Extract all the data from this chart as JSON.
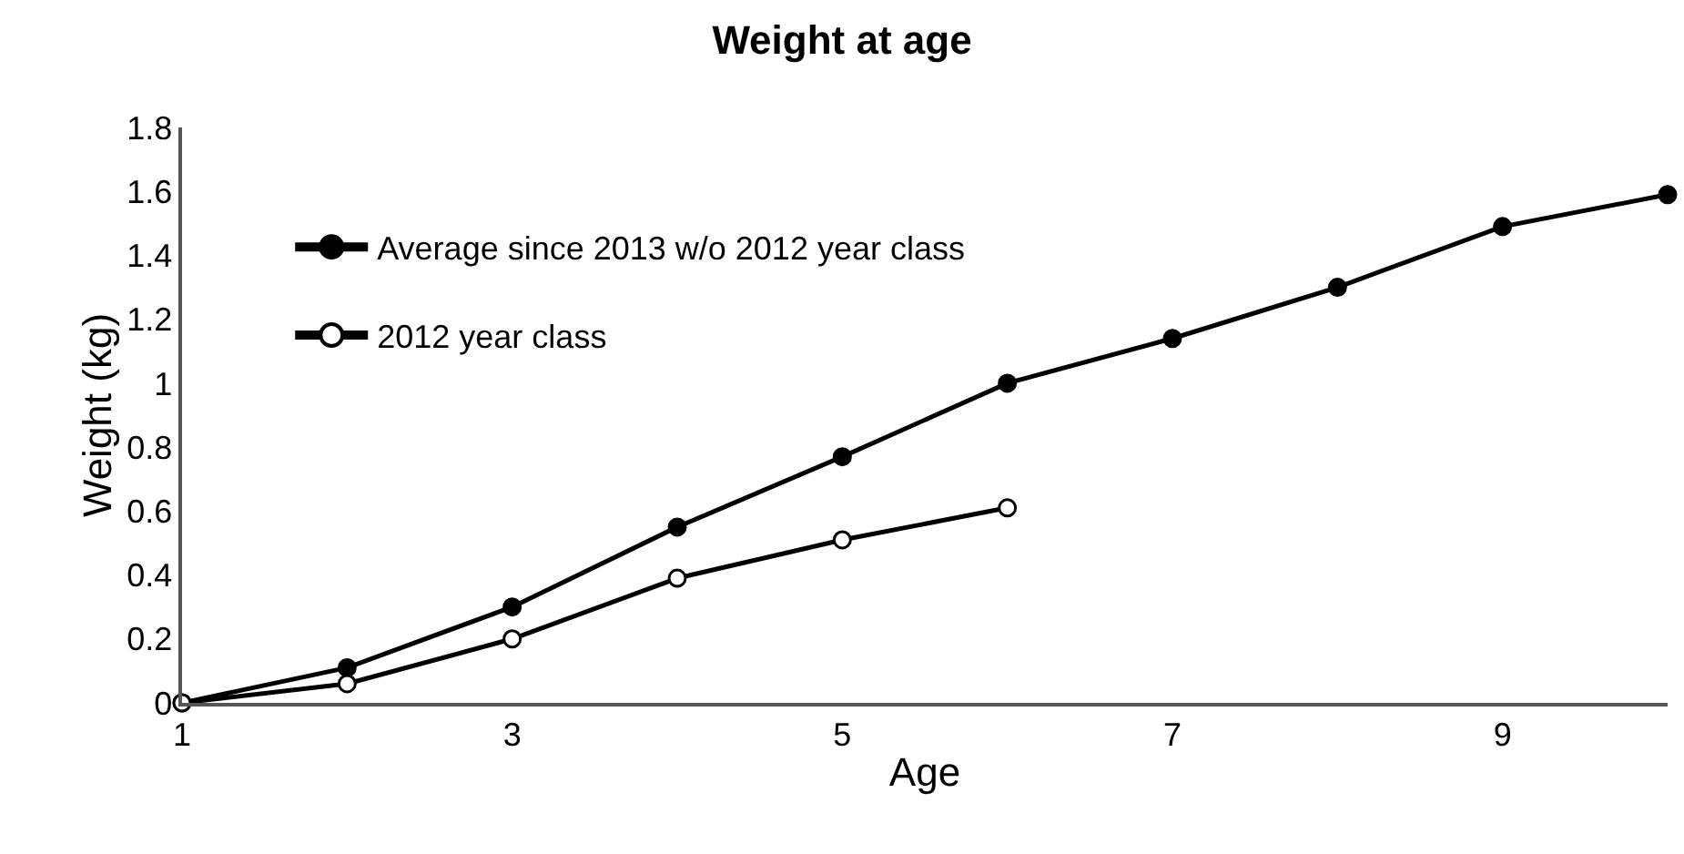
{
  "chart_data": {
    "type": "line",
    "title": "Weight at age",
    "xlabel": "Age",
    "ylabel": "Weight (kg)",
    "xlim": [
      1,
      10
    ],
    "xticks": [
      1,
      3,
      5,
      7,
      9
    ],
    "ylim": [
      0,
      1.8
    ],
    "yticks": [
      0,
      0.2,
      0.4,
      0.6,
      0.8,
      1,
      1.2,
      1.4,
      1.6,
      1.8
    ],
    "legend": "top left",
    "series": [
      {
        "name": "Average since 2013 w/o 2012 year class",
        "color": "#000000",
        "marker": "circle",
        "x": [
          1,
          2,
          3,
          4,
          5,
          6,
          7,
          8,
          9,
          10
        ],
        "values": [
          0,
          0.11,
          0.3,
          0.55,
          0.77,
          1.0,
          1.14,
          1.3,
          1.49,
          1.59
        ]
      },
      {
        "name": "2012 year class",
        "color": "#000000",
        "marker": "circle-open",
        "x": [
          1,
          2,
          3,
          4,
          5,
          6
        ],
        "values": [
          0,
          0.06,
          0.2,
          0.39,
          0.51,
          0.61
        ]
      }
    ]
  }
}
